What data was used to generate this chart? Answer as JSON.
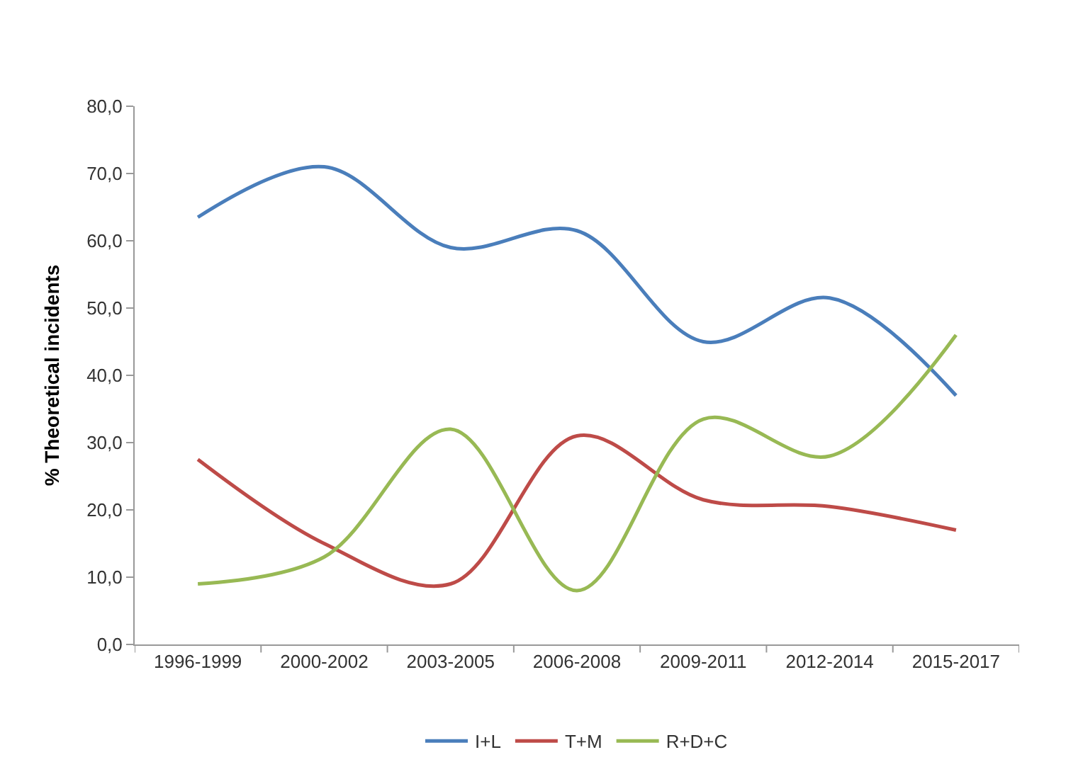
{
  "chart_data": {
    "type": "line",
    "ylabel": "% Theoretical incidents",
    "categories": [
      "1996-1999",
      "2000-2002",
      "2003-2005",
      "2006-2008",
      "2009-2011",
      "2012-2014",
      "2015-2017"
    ],
    "series": [
      {
        "name": "I+L",
        "color": "#4a7ebb",
        "values": [
          63.5,
          71.0,
          59.0,
          61.5,
          45.0,
          51.5,
          37.0
        ]
      },
      {
        "name": "T+M",
        "color": "#be4b48",
        "values": [
          27.5,
          15.0,
          9.0,
          31.0,
          21.5,
          20.5,
          17.0
        ]
      },
      {
        "name": "R+D+C",
        "color": "#98b954",
        "values": [
          9.0,
          13.0,
          32.0,
          8.0,
          33.5,
          28.0,
          46.0
        ]
      }
    ],
    "ylim": [
      0,
      80
    ],
    "yticks": [
      {
        "value": 0,
        "label": "0,0"
      },
      {
        "value": 10,
        "label": "10,0"
      },
      {
        "value": 20,
        "label": "20,0"
      },
      {
        "value": 30,
        "label": "30,0"
      },
      {
        "value": 40,
        "label": "40,0"
      },
      {
        "value": 50,
        "label": "50,0"
      },
      {
        "value": 60,
        "label": "60,0"
      },
      {
        "value": 70,
        "label": "70,0"
      },
      {
        "value": 80,
        "label": "80,0"
      }
    ],
    "legend": "bottom",
    "marker": "none",
    "line_style": "solid"
  }
}
